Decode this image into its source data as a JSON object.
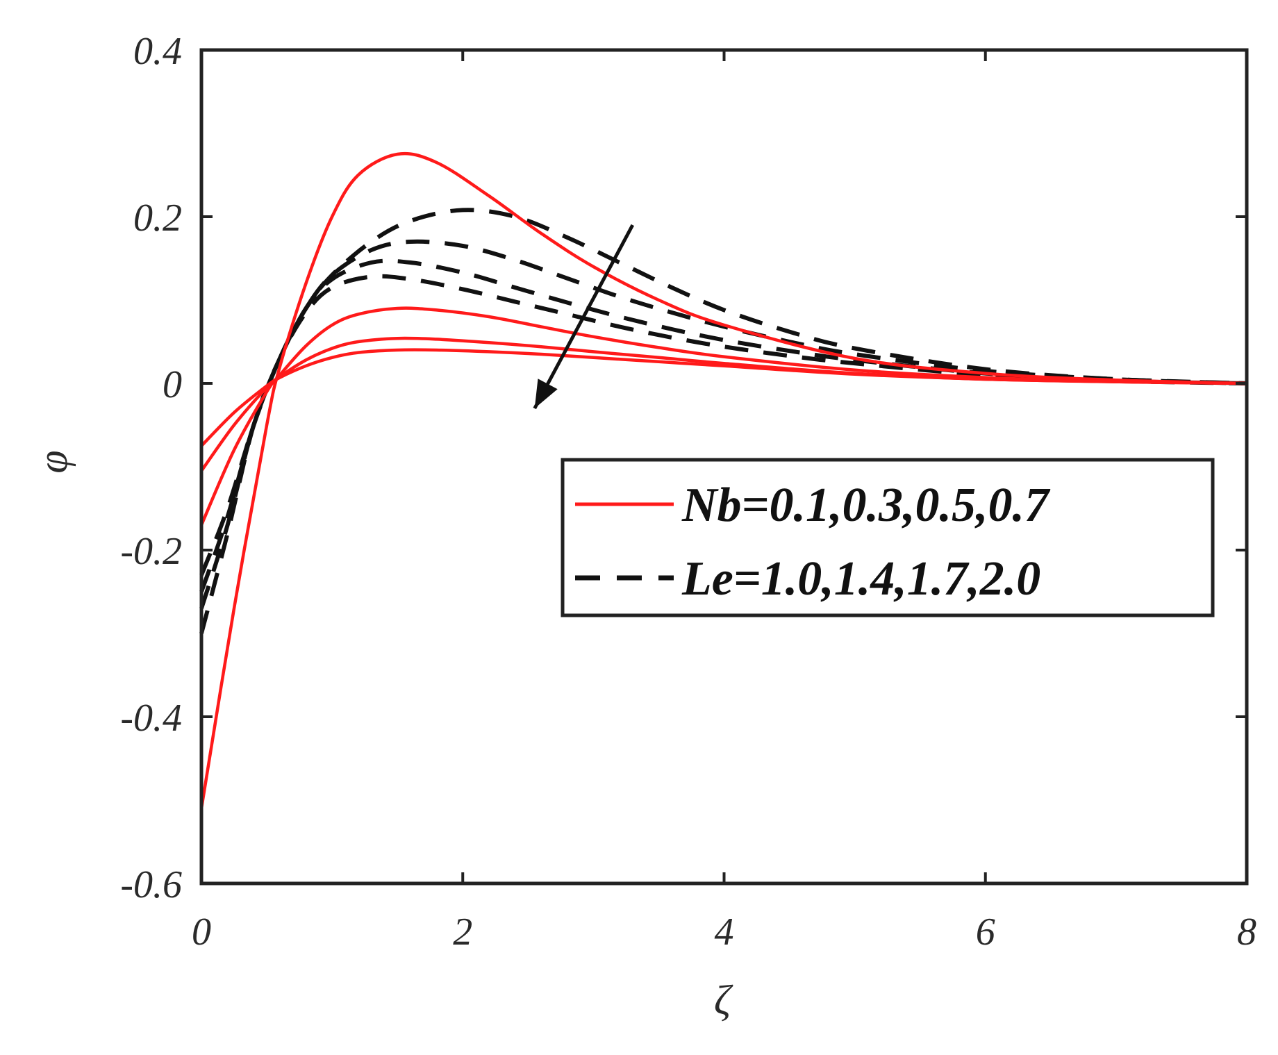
{
  "chart_data": {
    "type": "line",
    "xlabel": "ζ",
    "ylabel": "φ",
    "xlim": [
      0,
      8
    ],
    "ylim": [
      -0.6,
      0.4
    ],
    "xticks": [
      0,
      2,
      4,
      6,
      8
    ],
    "xtick_labels": [
      "0",
      "2",
      "4",
      "6",
      "8"
    ],
    "yticks": [
      0.4,
      0.2,
      0,
      -0.2,
      -0.4,
      -0.6
    ],
    "ytick_labels": [
      "0.4",
      "0.2",
      "0",
      "-0.2",
      "-0.4",
      "-0.6"
    ],
    "grid": false,
    "legend_position": "center-right",
    "legend": [
      {
        "label": "Nb=0.1,0.3,0.5,0.7",
        "style": "solid",
        "color": "#ff1a1a"
      },
      {
        "label": "Le=1.0,1.4,1.7,2.0",
        "style": "dashed",
        "color": "#111111"
      }
    ],
    "annotation": {
      "type": "arrow",
      "from": [
        3.3,
        0.19
      ],
      "to": [
        2.55,
        -0.03
      ],
      "color": "#111111"
    },
    "series": [
      {
        "group": "Nb",
        "style": "solid",
        "color": "#ff1a1a",
        "x": [
          0,
          0.25,
          0.5,
          0.6,
          0.8,
          1.0,
          1.2,
          1.5,
          1.8,
          2.2,
          2.6,
          3.0,
          3.5,
          4.0,
          5.0,
          6.0,
          7.0,
          8.0
        ],
        "y": [
          -0.51,
          -0.27,
          -0.05,
          0.02,
          0.12,
          0.2,
          0.25,
          0.275,
          0.265,
          0.225,
          0.18,
          0.14,
          0.1,
          0.07,
          0.03,
          0.012,
          0.004,
          0.0
        ]
      },
      {
        "group": "Nb",
        "style": "solid",
        "color": "#ff1a1a",
        "x": [
          0,
          0.25,
          0.5,
          0.6,
          0.8,
          1.0,
          1.2,
          1.5,
          1.8,
          2.2,
          2.6,
          3.0,
          3.5,
          4.0,
          5.0,
          6.0,
          7.0,
          8.0
        ],
        "y": [
          -0.17,
          -0.08,
          -0.01,
          0.01,
          0.045,
          0.07,
          0.083,
          0.09,
          0.088,
          0.08,
          0.068,
          0.056,
          0.043,
          0.032,
          0.016,
          0.007,
          0.002,
          0.0
        ]
      },
      {
        "group": "Nb",
        "style": "solid",
        "color": "#ff1a1a",
        "x": [
          0,
          0.25,
          0.5,
          0.6,
          0.8,
          1.0,
          1.2,
          1.5,
          1.8,
          2.2,
          2.6,
          3.0,
          3.5,
          4.0,
          5.0,
          6.0,
          7.0,
          8.0
        ],
        "y": [
          -0.105,
          -0.05,
          -0.005,
          0.008,
          0.028,
          0.042,
          0.05,
          0.054,
          0.053,
          0.049,
          0.044,
          0.038,
          0.031,
          0.024,
          0.012,
          0.005,
          0.002,
          0.0
        ]
      },
      {
        "group": "Nb",
        "style": "solid",
        "color": "#ff1a1a",
        "x": [
          0,
          0.25,
          0.5,
          0.6,
          0.8,
          1.0,
          1.2,
          1.5,
          1.8,
          2.2,
          2.6,
          3.0,
          3.5,
          4.0,
          5.0,
          6.0,
          7.0,
          8.0
        ],
        "y": [
          -0.075,
          -0.035,
          -0.003,
          0.007,
          0.021,
          0.031,
          0.037,
          0.04,
          0.04,
          0.038,
          0.035,
          0.031,
          0.026,
          0.021,
          0.011,
          0.005,
          0.002,
          0.0
        ]
      },
      {
        "group": "Le",
        "style": "dashed",
        "color": "#111111",
        "x": [
          0,
          0.2,
          0.4,
          0.6,
          0.8,
          1.0,
          1.3,
          1.6,
          2.0,
          2.4,
          2.8,
          3.2,
          3.6,
          4.0,
          4.5,
          5.0,
          6.0,
          7.0,
          8.0
        ],
        "y": [
          -0.23,
          -0.15,
          -0.05,
          0.03,
          0.09,
          0.13,
          0.17,
          0.195,
          0.208,
          0.2,
          0.175,
          0.145,
          0.115,
          0.088,
          0.062,
          0.042,
          0.017,
          0.005,
          0.0
        ]
      },
      {
        "group": "Le",
        "style": "dashed",
        "color": "#111111",
        "x": [
          0,
          0.2,
          0.4,
          0.6,
          0.8,
          1.0,
          1.3,
          1.6,
          2.0,
          2.4,
          2.8,
          3.2,
          3.6,
          4.0,
          4.5,
          5.0,
          6.0,
          7.0,
          8.0
        ],
        "y": [
          -0.25,
          -0.16,
          -0.05,
          0.03,
          0.09,
          0.13,
          0.16,
          0.17,
          0.165,
          0.148,
          0.126,
          0.104,
          0.085,
          0.068,
          0.05,
          0.035,
          0.015,
          0.005,
          0.0
        ]
      },
      {
        "group": "Le",
        "style": "dashed",
        "color": "#111111",
        "x": [
          0,
          0.2,
          0.4,
          0.6,
          0.8,
          1.0,
          1.3,
          1.6,
          2.0,
          2.4,
          2.8,
          3.2,
          3.6,
          4.0,
          4.5,
          5.0,
          6.0,
          7.0,
          8.0
        ],
        "y": [
          -0.27,
          -0.17,
          -0.05,
          0.03,
          0.09,
          0.125,
          0.145,
          0.145,
          0.133,
          0.115,
          0.097,
          0.08,
          0.065,
          0.052,
          0.039,
          0.028,
          0.012,
          0.004,
          0.0
        ]
      },
      {
        "group": "Le",
        "style": "dashed",
        "color": "#111111",
        "x": [
          0,
          0.2,
          0.4,
          0.6,
          0.8,
          1.0,
          1.3,
          1.6,
          2.0,
          2.4,
          2.8,
          3.2,
          3.6,
          4.0,
          4.5,
          5.0,
          6.0,
          7.0,
          8.0
        ],
        "y": [
          -0.3,
          -0.18,
          -0.05,
          0.03,
          0.085,
          0.115,
          0.128,
          0.125,
          0.113,
          0.098,
          0.083,
          0.068,
          0.055,
          0.044,
          0.033,
          0.024,
          0.01,
          0.003,
          0.0
        ]
      }
    ]
  }
}
